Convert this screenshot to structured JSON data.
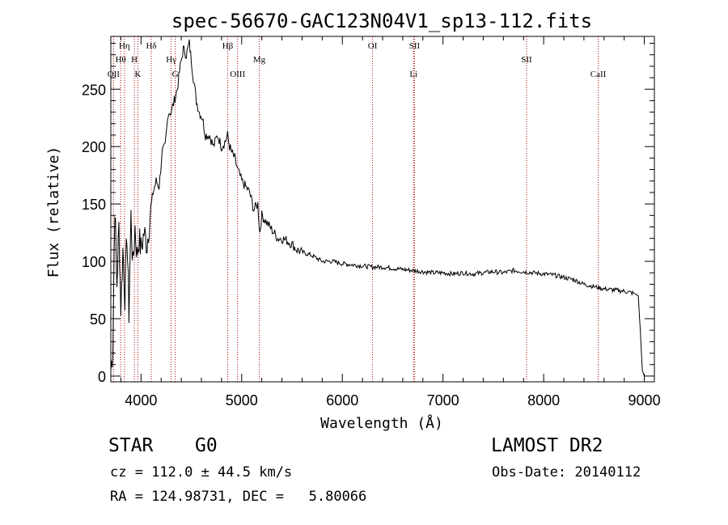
{
  "chart_data": {
    "type": "line",
    "title": "spec-56670-GAC123N04V1_sp13-112.fits",
    "xlabel": "Wavelength (Å)",
    "ylabel": "Flux (relative)",
    "xlim": [
      3700,
      9100
    ],
    "ylim": [
      -5,
      296
    ],
    "xticks": [
      4000,
      5000,
      6000,
      7000,
      8000,
      9000
    ],
    "yticks": [
      0,
      50,
      100,
      150,
      200,
      250
    ],
    "grid": false,
    "series": [
      {
        "x": [
          3700,
          3720,
          3740,
          3760,
          3780,
          3800,
          3820,
          3840,
          3860,
          3880,
          3900,
          3920,
          3940,
          3960,
          3980,
          4000,
          4030,
          4060,
          4090,
          4120,
          4150,
          4180,
          4210,
          4240,
          4270,
          4300,
          4330,
          4360,
          4390,
          4420,
          4450,
          4480,
          4500,
          4520,
          4550,
          4580,
          4610,
          4640,
          4680,
          4720,
          4760,
          4800,
          4840,
          4860,
          4880,
          4900,
          4930,
          4960,
          5000,
          5040,
          5080,
          5120,
          5160,
          5180,
          5200,
          5240,
          5280,
          5320,
          5360,
          5400,
          5450,
          5500,
          5550,
          5600,
          5700,
          5800,
          5900,
          6000,
          6100,
          6200,
          6300,
          6400,
          6500,
          6600,
          6700,
          6800,
          6900,
          7000,
          7100,
          7200,
          7300,
          7400,
          7500,
          7600,
          7700,
          7800,
          7900,
          8000,
          8100,
          8200,
          8300,
          8400,
          8500,
          8600,
          8700,
          8800,
          8900,
          8940,
          8960,
          8980,
          9000
        ],
        "y": [
          5,
          25,
          150,
          80,
          130,
          60,
          110,
          70,
          125,
          55,
          140,
          95,
          130,
          105,
          120,
          110,
          125,
          115,
          140,
          160,
          170,
          165,
          195,
          200,
          230,
          230,
          240,
          250,
          270,
          285,
          280,
          290,
          275,
          260,
          240,
          230,
          225,
          210,
          210,
          200,
          210,
          200,
          205,
          210,
          200,
          195,
          190,
          180,
          170,
          165,
          160,
          145,
          150,
          125,
          140,
          135,
          130,
          125,
          120,
          120,
          118,
          115,
          110,
          108,
          105,
          100,
          100,
          98,
          97,
          96,
          95,
          95,
          94,
          93,
          92,
          91,
          90,
          90,
          89,
          90,
          89,
          90,
          91,
          90,
          92,
          91,
          90,
          89,
          88,
          86,
          84,
          80,
          78,
          76,
          75,
          74,
          72,
          70,
          40,
          5,
          0
        ]
      }
    ],
    "lines": [
      {
        "label": "OII",
        "wavelength": 3727,
        "row": 3
      },
      {
        "label": "Hθ",
        "wavelength": 3798,
        "row": 2
      },
      {
        "label": "Hη",
        "wavelength": 3835,
        "row": 1
      },
      {
        "label": "H",
        "wavelength": 3934,
        "row": 2
      },
      {
        "label": "K",
        "wavelength": 3969,
        "row": 3
      },
      {
        "label": "Hδ",
        "wavelength": 4102,
        "row": 1
      },
      {
        "label": "Hγ",
        "wavelength": 4300,
        "row": 2
      },
      {
        "label": "G",
        "wavelength": 4340,
        "row": 3
      },
      {
        "label": "Hβ",
        "wavelength": 4861,
        "row": 1
      },
      {
        "label": "OIII",
        "wavelength": 4959,
        "row": 3
      },
      {
        "label": "Mg",
        "wavelength": 5175,
        "row": 2
      },
      {
        "label": "OI",
        "wavelength": 6300,
        "row": 1
      },
      {
        "label": "SII",
        "wavelength": 6717,
        "row": 1
      },
      {
        "label": "Li",
        "wavelength": 6707,
        "row": 3
      },
      {
        "label": "SII",
        "wavelength": 7830,
        "row": 2
      },
      {
        "label": "CaII",
        "wavelength": 8542,
        "row": 3
      }
    ]
  },
  "info": {
    "class_label": "STAR",
    "subclass_label": "G0",
    "survey_label": "LAMOST DR2",
    "cz_text": "cz = 112.0 ± 44.5 km/s",
    "obs_date_text": "Obs-Date: 20140112",
    "radec_text": "RA = 124.98731, DEC =   5.80066"
  }
}
